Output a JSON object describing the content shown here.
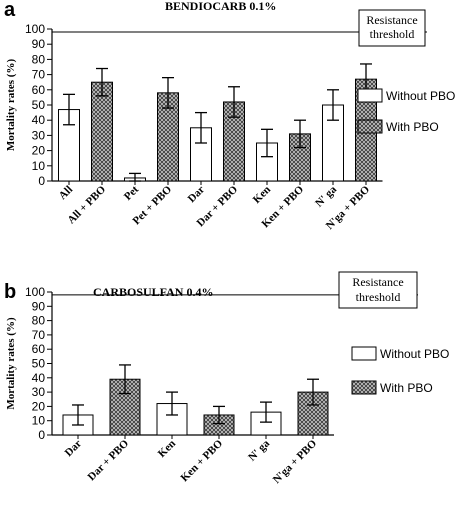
{
  "chart_data": [
    {
      "type": "bar",
      "panel_label": "a",
      "title": "BENDIOCARB 0.1%",
      "ylabel": "Mortality rates (%)",
      "ylim": [
        0,
        100
      ],
      "yticks": [
        0,
        10,
        20,
        30,
        40,
        50,
        60,
        70,
        80,
        90,
        100
      ],
      "categories": [
        "All",
        "All + PBO",
        "Pet",
        "Pet + PBO",
        "Dar",
        "Dar + PBO",
        "Ken",
        "Ken + PBO",
        "N' ga",
        "N'ga + PBO"
      ],
      "values": [
        47,
        65,
        2,
        58,
        35,
        52,
        25,
        31,
        50,
        67
      ],
      "errors": [
        10,
        9,
        3,
        10,
        10,
        10,
        9,
        9,
        10,
        10
      ],
      "bar_types": [
        "without",
        "with",
        "without",
        "with",
        "without",
        "with",
        "without",
        "with",
        "without",
        "with"
      ],
      "threshold": 98,
      "threshold_label_lines": [
        "Resistance",
        "threshold"
      ],
      "legend": [
        {
          "key": "without",
          "label": "Without PBO",
          "pattern": "white"
        },
        {
          "key": "with",
          "label": "With PBO",
          "pattern": "crosshatch"
        }
      ],
      "legend_position": "right"
    },
    {
      "type": "bar",
      "panel_label": "b",
      "title": "CARBOSULFAN 0.4%",
      "ylabel": "Mortality rates (%)",
      "ylim": [
        0,
        100
      ],
      "yticks": [
        0,
        10,
        20,
        30,
        40,
        50,
        60,
        70,
        80,
        90,
        100
      ],
      "categories": [
        "Dar",
        "Dar + PBO",
        "Ken",
        "Ken + PBO",
        "N' ga",
        "N'ga + PBO"
      ],
      "values": [
        14,
        39,
        22,
        14,
        16,
        30
      ],
      "errors": [
        7,
        10,
        8,
        6,
        7,
        9
      ],
      "bar_types": [
        "without",
        "with",
        "without",
        "with",
        "without",
        "with"
      ],
      "threshold": 98,
      "threshold_label_lines": [
        "Resistance",
        "threshold"
      ],
      "legend": [
        {
          "key": "without",
          "label": "Without PBO",
          "pattern": "white"
        },
        {
          "key": "with",
          "label": "With PBO",
          "pattern": "crosshatch"
        }
      ],
      "legend_position": "right"
    }
  ]
}
